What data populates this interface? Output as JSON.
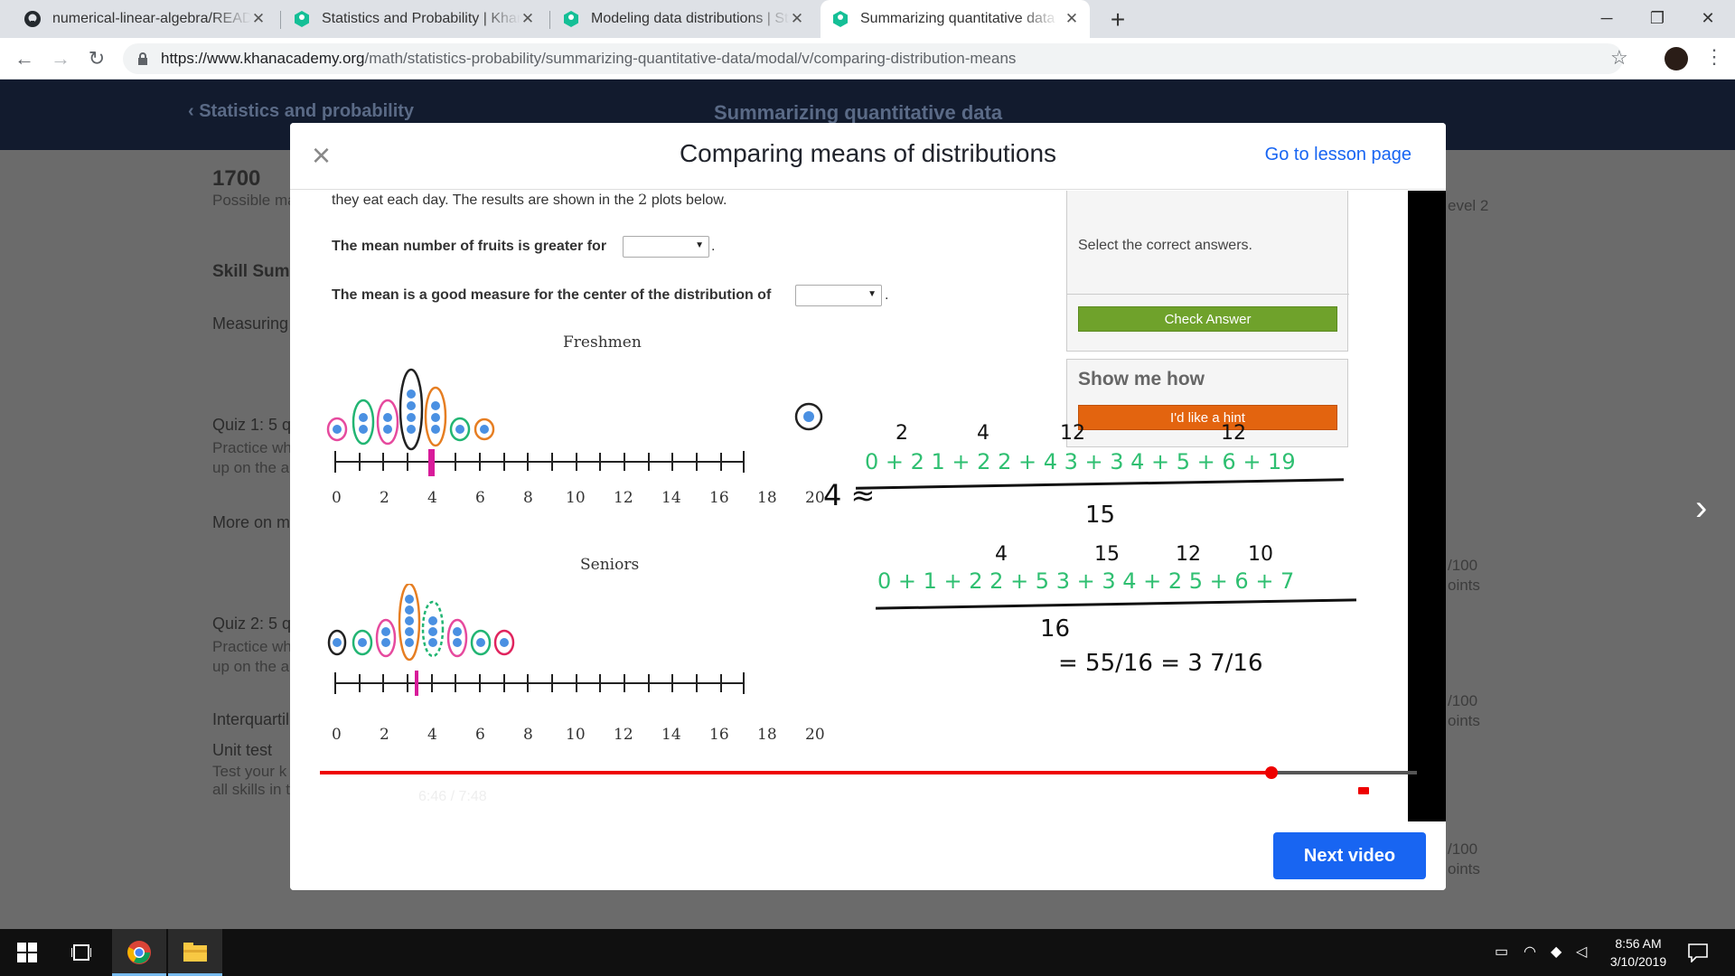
{
  "browser": {
    "tabs": [
      {
        "title": "numerical-linear-algebra/READM",
        "icon": "github-icon"
      },
      {
        "title": "Statistics and Probability | Khan A",
        "icon": "khan-academy-icon"
      },
      {
        "title": "Modeling data distributions | Stat",
        "icon": "khan-academy-icon"
      },
      {
        "title": "Summarizing quantitative data | S",
        "icon": "khan-academy-icon",
        "active": true
      }
    ],
    "new_tab": "+",
    "url_host": "https://www.khanacademy.org",
    "url_path": "/math/statistics-probability/summarizing-quantitative-data/modal/v/comparing-distribution-means",
    "window_controls": {
      "minimize": "─",
      "maximize": "❐",
      "close": "✕"
    }
  },
  "page": {
    "breadcrumb": "Statistics and probability",
    "unit_title": "Summarizing quantitative data",
    "points": "1700",
    "points_sub": "Possible ma",
    "skill_summary": "Skill Summ",
    "measuring": "Measuring",
    "quiz1_title": "Quiz 1: 5 q",
    "quiz1_sub1": "Practice wh",
    "quiz1_sub2": "up on the a",
    "more_on": "More on m",
    "quiz2_title": "Quiz 2: 5 q",
    "quiz2_sub1": "Practice wh",
    "quiz2_sub2": "up on the a",
    "interquartile": "Interquartil",
    "unit_test": "Unit test",
    "unit_test_sub1": "Test your k",
    "unit_test_sub2": "all skills in t",
    "level": "evel 2",
    "points_right": [
      "/100",
      "oints",
      "/100",
      "oints",
      "/100",
      "oints"
    ]
  },
  "modal": {
    "title": "Comparing means of distributions",
    "go_to_lesson": "Go to lesson page",
    "close": "×",
    "next_video": "Next video"
  },
  "exercise": {
    "intro": "they eat each day. The results are shown in the",
    "intro_num": "2",
    "intro_end": "plots below.",
    "q1": "The mean number of fruits is greater for",
    "q2": "The mean is a good measure for the center of the distribution of",
    "select_text": "Select the correct answers.",
    "check_answer": "Check Answer",
    "show_me_how": "Show me how",
    "hint": "I'd like a hint",
    "plot1_title": "Freshmen",
    "plot2_title": "Seniors",
    "axis_ticks": [
      "0",
      "2",
      "4",
      "6",
      "8",
      "10",
      "12",
      "14",
      "16",
      "18",
      "20"
    ]
  },
  "handwriting": {
    "freshmen_numerator": "0 + 2 1 + 2 2 + 4 3 + 3 4 + 5 + 6 + 19",
    "freshmen_above": [
      "2",
      "4",
      "12",
      "12"
    ],
    "freshmen_denominator": "15",
    "freshmen_mean": "4 ≈",
    "seniors_numerator": "0 + 1 + 2 2 + 5 3 + 3 4 + 2 5 + 6 + 7",
    "seniors_above": [
      "4",
      "15",
      "12",
      "10"
    ],
    "seniors_denominator": "16",
    "result": "= 55/16 = 3 7/16"
  },
  "player": {
    "time": "6:46 / 7:48",
    "progress_fraction": 0.867
  },
  "taskbar": {
    "time": "8:56 AM",
    "date": "3/10/2019"
  }
}
